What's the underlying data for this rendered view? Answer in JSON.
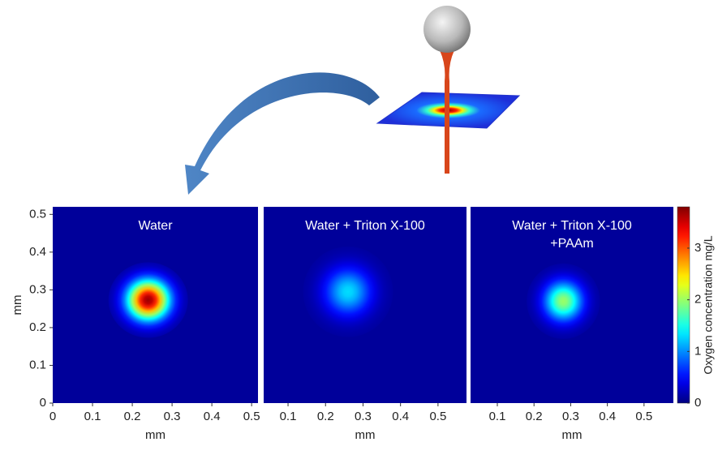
{
  "chart_data": [
    {
      "type": "heatmap",
      "title": [
        "Water"
      ],
      "xlabel": "mm",
      "ylabel": "mm",
      "xlim": [
        0,
        0.516
      ],
      "ylim": [
        0,
        0.52
      ],
      "xticks": [
        0,
        0.1,
        0.2,
        0.3,
        0.4,
        0.5
      ],
      "yticks": [
        0,
        0.1,
        0.2,
        0.3,
        0.4,
        0.5
      ],
      "background": 0.1,
      "spot": {
        "x": 0.24,
        "y": 0.273,
        "peak": 3.7,
        "radius": 0.1
      }
    },
    {
      "type": "heatmap",
      "title": [
        "Water + Triton X-100"
      ],
      "xlabel": "mm",
      "xlim": [
        0.035,
        0.576
      ],
      "ylim": [
        0,
        0.52
      ],
      "xticks": [
        0.1,
        0.2,
        0.3,
        0.4,
        0.5
      ],
      "background": 0.1,
      "spot": {
        "x": 0.26,
        "y": 0.295,
        "peak": 1.3,
        "radius": 0.12
      }
    },
    {
      "type": "heatmap",
      "title": [
        "Water + Triton X-100",
        "+PAAm"
      ],
      "xlabel": "mm",
      "xlim": [
        0.027,
        0.58
      ],
      "ylim": [
        0,
        0.52
      ],
      "xticks": [
        0.1,
        0.2,
        0.3,
        0.4,
        0.5
      ],
      "background": 0.1,
      "spot": {
        "x": 0.28,
        "y": 0.27,
        "peak": 2.0,
        "radius": 0.1
      },
      "colorbar": {
        "label": "Oxygen concentration mg/L",
        "clim": [
          0,
          3.8
        ],
        "ticks": [
          0,
          1,
          2,
          3
        ]
      }
    }
  ]
}
